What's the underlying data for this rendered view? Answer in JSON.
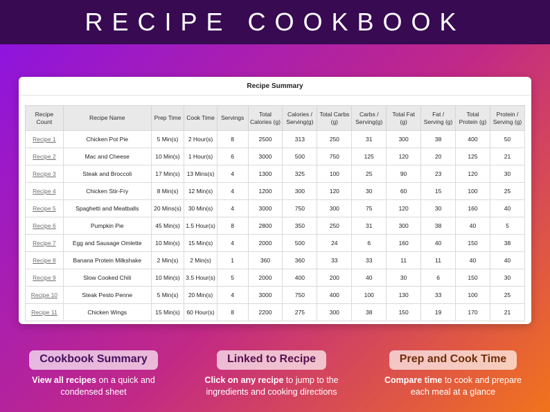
{
  "banner": {
    "title": "RECIPE COOKBOOK"
  },
  "sheet": {
    "title": "Recipe Summary",
    "columns": [
      "Recipe Count",
      "Recipe Name",
      "Prep Time",
      "Cook Time",
      "Servings",
      "Total Calories (g)",
      "Calories / Serving(g)",
      "Total Carbs (g)",
      "Carbs / Serving(g)",
      "Total Fat (g)",
      "Fat / Serving (g)",
      "Total Protein (g)",
      "Protein / Serving (g)"
    ],
    "rows": [
      [
        "Recipe 1",
        "Chicken Pot Pie",
        "5 Min(s)",
        "2 Hour(s)",
        "8",
        "2500",
        "313",
        "250",
        "31",
        "300",
        "38",
        "400",
        "50"
      ],
      [
        "Recipe 2",
        "Mac and Cheese",
        "10 Min(s)",
        "1 Hour(s)",
        "6",
        "3000",
        "500",
        "750",
        "125",
        "120",
        "20",
        "125",
        "21"
      ],
      [
        "Recipe 3",
        "Steak and Broccoli",
        "17 Min(s)",
        "13 Mins(s)",
        "4",
        "1300",
        "325",
        "100",
        "25",
        "90",
        "23",
        "120",
        "30"
      ],
      [
        "Recipe 4",
        "Chicken Stir-Fry",
        "8 Min(s)",
        "12 Min(s)",
        "4",
        "1200",
        "300",
        "120",
        "30",
        "60",
        "15",
        "100",
        "25"
      ],
      [
        "Recipe 5",
        "Spaghetti and Meatballs",
        "20 Mins(s)",
        "30 Min(s)",
        "4",
        "3000",
        "750",
        "300",
        "75",
        "120",
        "30",
        "160",
        "40"
      ],
      [
        "Recipe 6",
        "Pumpkin Pie",
        "45 Min(s)",
        "1.5 Hour(s)",
        "8",
        "2800",
        "350",
        "250",
        "31",
        "300",
        "38",
        "40",
        "5"
      ],
      [
        "Recipe 7",
        "Egg and Sausage Omlette",
        "10 Min(s)",
        "15 Min(s)",
        "4",
        "2000",
        "500",
        "24",
        "6",
        "160",
        "40",
        "150",
        "38"
      ],
      [
        "Recipe 8",
        "Banana Protein Milkshake",
        "2 Min(s)",
        "2 Min(s)",
        "1",
        "360",
        "360",
        "33",
        "33",
        "11",
        "11",
        "40",
        "40"
      ],
      [
        "Recipe 9",
        "Slow Cooked Chili",
        "10 Min(s)",
        "3.5 Hour(s)",
        "5",
        "2000",
        "400",
        "200",
        "40",
        "30",
        "6",
        "150",
        "30"
      ],
      [
        "Recipe 10",
        "Steak Pesto Penne",
        "5 Min(s)",
        "20 Min(s)",
        "4",
        "3000",
        "750",
        "400",
        "100",
        "130",
        "33",
        "100",
        "25"
      ],
      [
        "Recipe 11",
        "Chicken Wings",
        "15 Min(s)",
        "60 Hour(s)",
        "8",
        "2200",
        "275",
        "300",
        "38",
        "150",
        "19",
        "170",
        "21"
      ]
    ]
  },
  "callouts": [
    {
      "title": "Cookbook Summary",
      "bold": "View all recipes",
      "rest": " on a quick and condensed sheet"
    },
    {
      "title": "Linked to Recipe",
      "bold": "Click on any recipe",
      "rest": " to jump to the ingredients and cooking directions"
    },
    {
      "title": "Prep and Cook Time",
      "bold": "Compare time",
      "rest": " to cook and prepare each meal at a glance"
    }
  ],
  "colors": {
    "banner_bg": "#380a52",
    "gradient_start": "#8a12e6",
    "gradient_mid": "#c12887",
    "gradient_end": "#f1731c",
    "header_fill": "#e9e9e9",
    "link_color": "#6e6e6e",
    "pill_bg": "rgba(255,255,255,0.68)",
    "pill1_text": "#45105e",
    "pill2_text": "#58104e",
    "pill3_text": "#6f2d07"
  }
}
